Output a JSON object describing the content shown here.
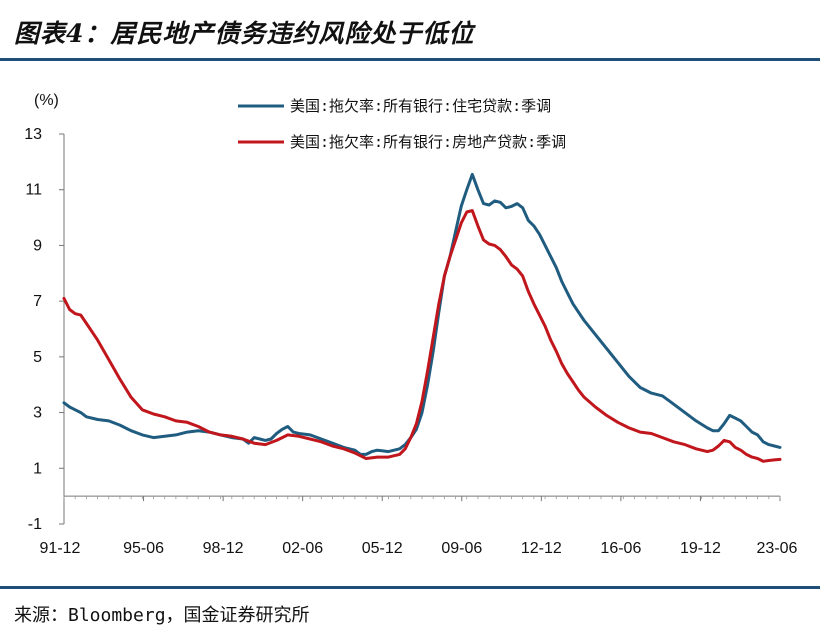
{
  "title": "图表4：居民地产债务违约风险处于低位",
  "source": "来源：Bloomberg，国金证券研究所",
  "colors": {
    "series1": "#1f5c80",
    "series2": "#c0161c",
    "rule": "#1f4e79"
  },
  "chart_data": {
    "type": "line",
    "ylabel": "(%)",
    "ylim": [
      -1,
      13
    ],
    "yticks": [
      -1,
      1,
      3,
      5,
      7,
      9,
      11,
      13
    ],
    "xlim": [
      1991.75,
      2023.75
    ],
    "xticks": [
      "91-12",
      "95-06",
      "98-12",
      "02-06",
      "05-12",
      "09-06",
      "12-12",
      "16-06",
      "19-12",
      "23-06"
    ],
    "grid": false,
    "legend_position": "top",
    "series": [
      {
        "name": "美国:拖欠率:所有银行:住宅贷款:季调",
        "points": [
          [
            1991.75,
            3.35
          ],
          [
            1992.0,
            3.2
          ],
          [
            1992.25,
            3.1
          ],
          [
            1992.5,
            3.0
          ],
          [
            1992.75,
            2.85
          ],
          [
            1993.25,
            2.75
          ],
          [
            1993.75,
            2.7
          ],
          [
            1994.25,
            2.55
          ],
          [
            1994.75,
            2.35
          ],
          [
            1995.25,
            2.2
          ],
          [
            1995.75,
            2.1
          ],
          [
            1996.25,
            2.15
          ],
          [
            1996.75,
            2.2
          ],
          [
            1997.25,
            2.3
          ],
          [
            1997.75,
            2.35
          ],
          [
            1998.25,
            2.3
          ],
          [
            1998.75,
            2.2
          ],
          [
            1999.25,
            2.1
          ],
          [
            1999.75,
            2.05
          ],
          [
            2000.0,
            1.9
          ],
          [
            2000.25,
            2.1
          ],
          [
            2000.5,
            2.05
          ],
          [
            2000.75,
            2.0
          ],
          [
            2001.0,
            2.05
          ],
          [
            2001.25,
            2.25
          ],
          [
            2001.5,
            2.4
          ],
          [
            2001.75,
            2.5
          ],
          [
            2002.0,
            2.3
          ],
          [
            2002.25,
            2.25
          ],
          [
            2002.75,
            2.2
          ],
          [
            2003.25,
            2.05
          ],
          [
            2003.75,
            1.9
          ],
          [
            2004.25,
            1.75
          ],
          [
            2004.75,
            1.65
          ],
          [
            2005.0,
            1.5
          ],
          [
            2005.25,
            1.5
          ],
          [
            2005.5,
            1.6
          ],
          [
            2005.75,
            1.65
          ],
          [
            2006.25,
            1.6
          ],
          [
            2006.75,
            1.7
          ],
          [
            2007.0,
            1.85
          ],
          [
            2007.25,
            2.1
          ],
          [
            2007.5,
            2.4
          ],
          [
            2007.75,
            3.0
          ],
          [
            2008.0,
            4.0
          ],
          [
            2008.25,
            5.2
          ],
          [
            2008.5,
            6.6
          ],
          [
            2008.75,
            7.9
          ],
          [
            2009.0,
            8.6
          ],
          [
            2009.25,
            9.5
          ],
          [
            2009.5,
            10.4
          ],
          [
            2009.75,
            11.0
          ],
          [
            2010.0,
            11.55
          ],
          [
            2010.25,
            11.0
          ],
          [
            2010.5,
            10.5
          ],
          [
            2010.75,
            10.45
          ],
          [
            2011.0,
            10.6
          ],
          [
            2011.25,
            10.55
          ],
          [
            2011.5,
            10.35
          ],
          [
            2011.75,
            10.4
          ],
          [
            2012.0,
            10.5
          ],
          [
            2012.25,
            10.35
          ],
          [
            2012.5,
            9.9
          ],
          [
            2012.75,
            9.7
          ],
          [
            2013.0,
            9.4
          ],
          [
            2013.25,
            9.0
          ],
          [
            2013.5,
            8.6
          ],
          [
            2013.75,
            8.2
          ],
          [
            2014.0,
            7.7
          ],
          [
            2014.25,
            7.3
          ],
          [
            2014.5,
            6.9
          ],
          [
            2014.75,
            6.6
          ],
          [
            2015.0,
            6.3
          ],
          [
            2015.5,
            5.8
          ],
          [
            2016.0,
            5.3
          ],
          [
            2016.5,
            4.8
          ],
          [
            2017.0,
            4.3
          ],
          [
            2017.5,
            3.9
          ],
          [
            2018.0,
            3.7
          ],
          [
            2018.5,
            3.6
          ],
          [
            2019.0,
            3.3
          ],
          [
            2019.5,
            3.0
          ],
          [
            2020.0,
            2.7
          ],
          [
            2020.5,
            2.45
          ],
          [
            2020.75,
            2.35
          ],
          [
            2021.0,
            2.35
          ],
          [
            2021.25,
            2.6
          ],
          [
            2021.5,
            2.9
          ],
          [
            2021.75,
            2.8
          ],
          [
            2022.0,
            2.7
          ],
          [
            2022.25,
            2.5
          ],
          [
            2022.5,
            2.3
          ],
          [
            2022.75,
            2.2
          ],
          [
            2023.0,
            1.95
          ],
          [
            2023.25,
            1.85
          ],
          [
            2023.5,
            1.8
          ],
          [
            2023.75,
            1.75
          ]
        ]
      },
      {
        "name": "美国:拖欠率:所有银行:房地产贷款:季调",
        "points": [
          [
            1991.75,
            7.1
          ],
          [
            1992.0,
            6.7
          ],
          [
            1992.25,
            6.55
          ],
          [
            1992.5,
            6.5
          ],
          [
            1992.75,
            6.2
          ],
          [
            1993.25,
            5.6
          ],
          [
            1993.75,
            4.9
          ],
          [
            1994.25,
            4.2
          ],
          [
            1994.75,
            3.55
          ],
          [
            1995.25,
            3.1
          ],
          [
            1995.75,
            2.95
          ],
          [
            1996.25,
            2.85
          ],
          [
            1996.75,
            2.7
          ],
          [
            1997.25,
            2.65
          ],
          [
            1997.75,
            2.5
          ],
          [
            1998.25,
            2.3
          ],
          [
            1998.75,
            2.2
          ],
          [
            1999.25,
            2.15
          ],
          [
            1999.75,
            2.05
          ],
          [
            2000.25,
            1.9
          ],
          [
            2000.75,
            1.85
          ],
          [
            2001.25,
            2.0
          ],
          [
            2001.75,
            2.2
          ],
          [
            2002.25,
            2.15
          ],
          [
            2002.75,
            2.05
          ],
          [
            2003.25,
            1.95
          ],
          [
            2003.75,
            1.8
          ],
          [
            2004.25,
            1.7
          ],
          [
            2004.75,
            1.55
          ],
          [
            2005.25,
            1.35
          ],
          [
            2005.75,
            1.4
          ],
          [
            2006.25,
            1.4
          ],
          [
            2006.75,
            1.5
          ],
          [
            2007.0,
            1.7
          ],
          [
            2007.25,
            2.1
          ],
          [
            2007.5,
            2.6
          ],
          [
            2007.75,
            3.4
          ],
          [
            2008.0,
            4.5
          ],
          [
            2008.25,
            5.7
          ],
          [
            2008.5,
            6.9
          ],
          [
            2008.75,
            7.9
          ],
          [
            2009.0,
            8.6
          ],
          [
            2009.25,
            9.2
          ],
          [
            2009.5,
            9.8
          ],
          [
            2009.75,
            10.2
          ],
          [
            2010.0,
            10.25
          ],
          [
            2010.25,
            9.7
          ],
          [
            2010.5,
            9.2
          ],
          [
            2010.75,
            9.05
          ],
          [
            2011.0,
            9.0
          ],
          [
            2011.25,
            8.85
          ],
          [
            2011.5,
            8.6
          ],
          [
            2011.75,
            8.3
          ],
          [
            2012.0,
            8.15
          ],
          [
            2012.25,
            7.9
          ],
          [
            2012.5,
            7.35
          ],
          [
            2012.75,
            6.9
          ],
          [
            2013.0,
            6.5
          ],
          [
            2013.25,
            6.1
          ],
          [
            2013.5,
            5.6
          ],
          [
            2013.75,
            5.2
          ],
          [
            2014.0,
            4.75
          ],
          [
            2014.25,
            4.4
          ],
          [
            2014.5,
            4.1
          ],
          [
            2014.75,
            3.8
          ],
          [
            2015.0,
            3.55
          ],
          [
            2015.5,
            3.2
          ],
          [
            2016.0,
            2.9
          ],
          [
            2016.5,
            2.65
          ],
          [
            2017.0,
            2.45
          ],
          [
            2017.5,
            2.3
          ],
          [
            2018.0,
            2.25
          ],
          [
            2018.5,
            2.1
          ],
          [
            2019.0,
            1.95
          ],
          [
            2019.5,
            1.85
          ],
          [
            2020.0,
            1.7
          ],
          [
            2020.5,
            1.6
          ],
          [
            2020.75,
            1.65
          ],
          [
            2021.0,
            1.8
          ],
          [
            2021.25,
            2.0
          ],
          [
            2021.5,
            1.95
          ],
          [
            2021.75,
            1.75
          ],
          [
            2022.0,
            1.65
          ],
          [
            2022.25,
            1.5
          ],
          [
            2022.5,
            1.4
          ],
          [
            2022.75,
            1.35
          ],
          [
            2023.0,
            1.25
          ],
          [
            2023.25,
            1.28
          ],
          [
            2023.5,
            1.3
          ],
          [
            2023.75,
            1.32
          ]
        ]
      }
    ]
  }
}
